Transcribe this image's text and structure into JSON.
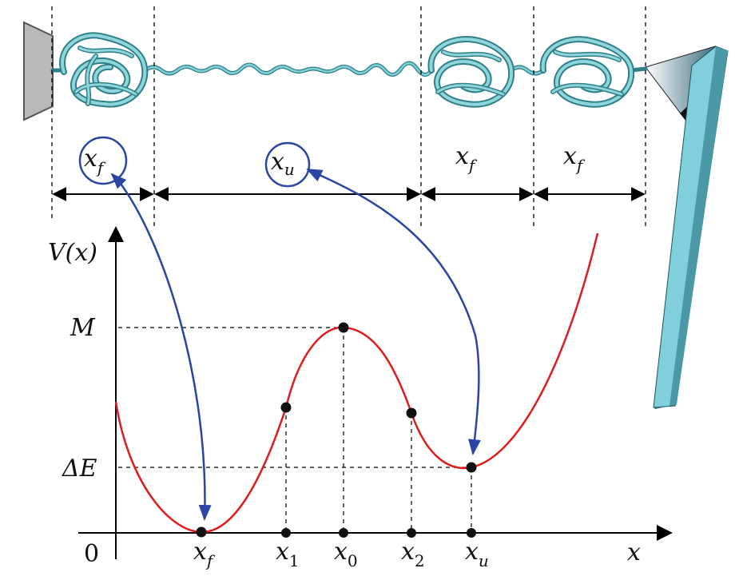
{
  "colors": {
    "potential_curve": "#e01b1b",
    "arrows_blue": "#2a45a3",
    "protein": "#6fc7cf",
    "protein_dark": "#2f7f88",
    "dashed": "#000000",
    "wall": "#b9b9b9",
    "cantilever": "#7fcfdc"
  },
  "segments": [
    {
      "var": "x",
      "sub": "f",
      "circled": true
    },
    {
      "var": "x",
      "sub": "u",
      "circled": true
    },
    {
      "var": "x",
      "sub": "f",
      "circled": false
    },
    {
      "var": "x",
      "sub": "f",
      "circled": false
    }
  ],
  "axes": {
    "y_label_main": "V(x)",
    "x_label": "x",
    "origin_label": "0"
  },
  "levels": {
    "M": "M",
    "deltaE": "ΔE"
  },
  "xticks": [
    {
      "var": "x",
      "sub": "f",
      "sub_italic": true
    },
    {
      "var": "x",
      "sub": "1",
      "sub_italic": false
    },
    {
      "var": "x",
      "sub": "0",
      "sub_italic": false
    },
    {
      "var": "x",
      "sub": "2",
      "sub_italic": false
    },
    {
      "var": "x",
      "sub": "u",
      "sub_italic": true
    }
  ]
}
